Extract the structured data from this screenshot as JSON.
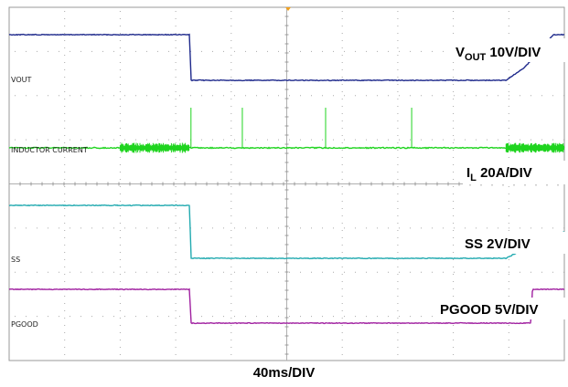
{
  "chart_data": {
    "type": "line",
    "title": "",
    "xlabel": "40ms/DIV",
    "time_per_div_ms": 40,
    "xlim_ms": [
      0,
      400
    ],
    "grid": true,
    "series": [
      {
        "name": "VOUT",
        "channel_label": "VOUT",
        "scale_main": "V",
        "scale_sub": "OUT",
        "scale_rest": " 10V/DIV",
        "color": "#1f2a8c",
        "points": [
          [
            0,
            1
          ],
          [
            130,
            1
          ],
          [
            131,
            0
          ],
          [
            358,
            0
          ],
          [
            370,
            0.25
          ],
          [
            380,
            0.55
          ],
          [
            388,
            0.85
          ],
          [
            392,
            1
          ],
          [
            400,
            1
          ]
        ]
      },
      {
        "name": "INDUCTOR CURRENT",
        "channel_label": "INDUCTOR CURRENT",
        "scale_main": "I",
        "scale_sub": "L",
        "scale_rest": " 20A/DIV",
        "color": "#1fd41f",
        "points": [
          [
            0,
            0
          ],
          [
            400,
            0
          ]
        ],
        "ripple_regions_ms": [
          [
            80,
            130
          ],
          [
            358,
            400
          ]
        ],
        "spikes_ms": [
          131,
          168,
          228,
          290
        ]
      },
      {
        "name": "SS",
        "channel_label": "SS",
        "scale_main": "SS",
        "scale_sub": "",
        "scale_rest": " 2V/DIV",
        "color": "#22aab0",
        "points": [
          [
            0,
            1
          ],
          [
            130,
            1
          ],
          [
            131,
            0
          ],
          [
            358,
            0
          ],
          [
            380,
            0.3
          ],
          [
            410,
            0.6
          ],
          [
            440,
            0.85
          ],
          [
            465,
            1
          ],
          [
            490,
            1
          ]
        ]
      },
      {
        "name": "PGOOD",
        "channel_label": "PGOOD",
        "scale_main": "PGOOD",
        "scale_sub": "",
        "scale_rest": " 5V/DIV",
        "color": "#a020a0",
        "points": [
          [
            0,
            1
          ],
          [
            130,
            1
          ],
          [
            131,
            0
          ],
          [
            376,
            0
          ],
          [
            377,
            1
          ],
          [
            400,
            1
          ]
        ]
      }
    ]
  }
}
